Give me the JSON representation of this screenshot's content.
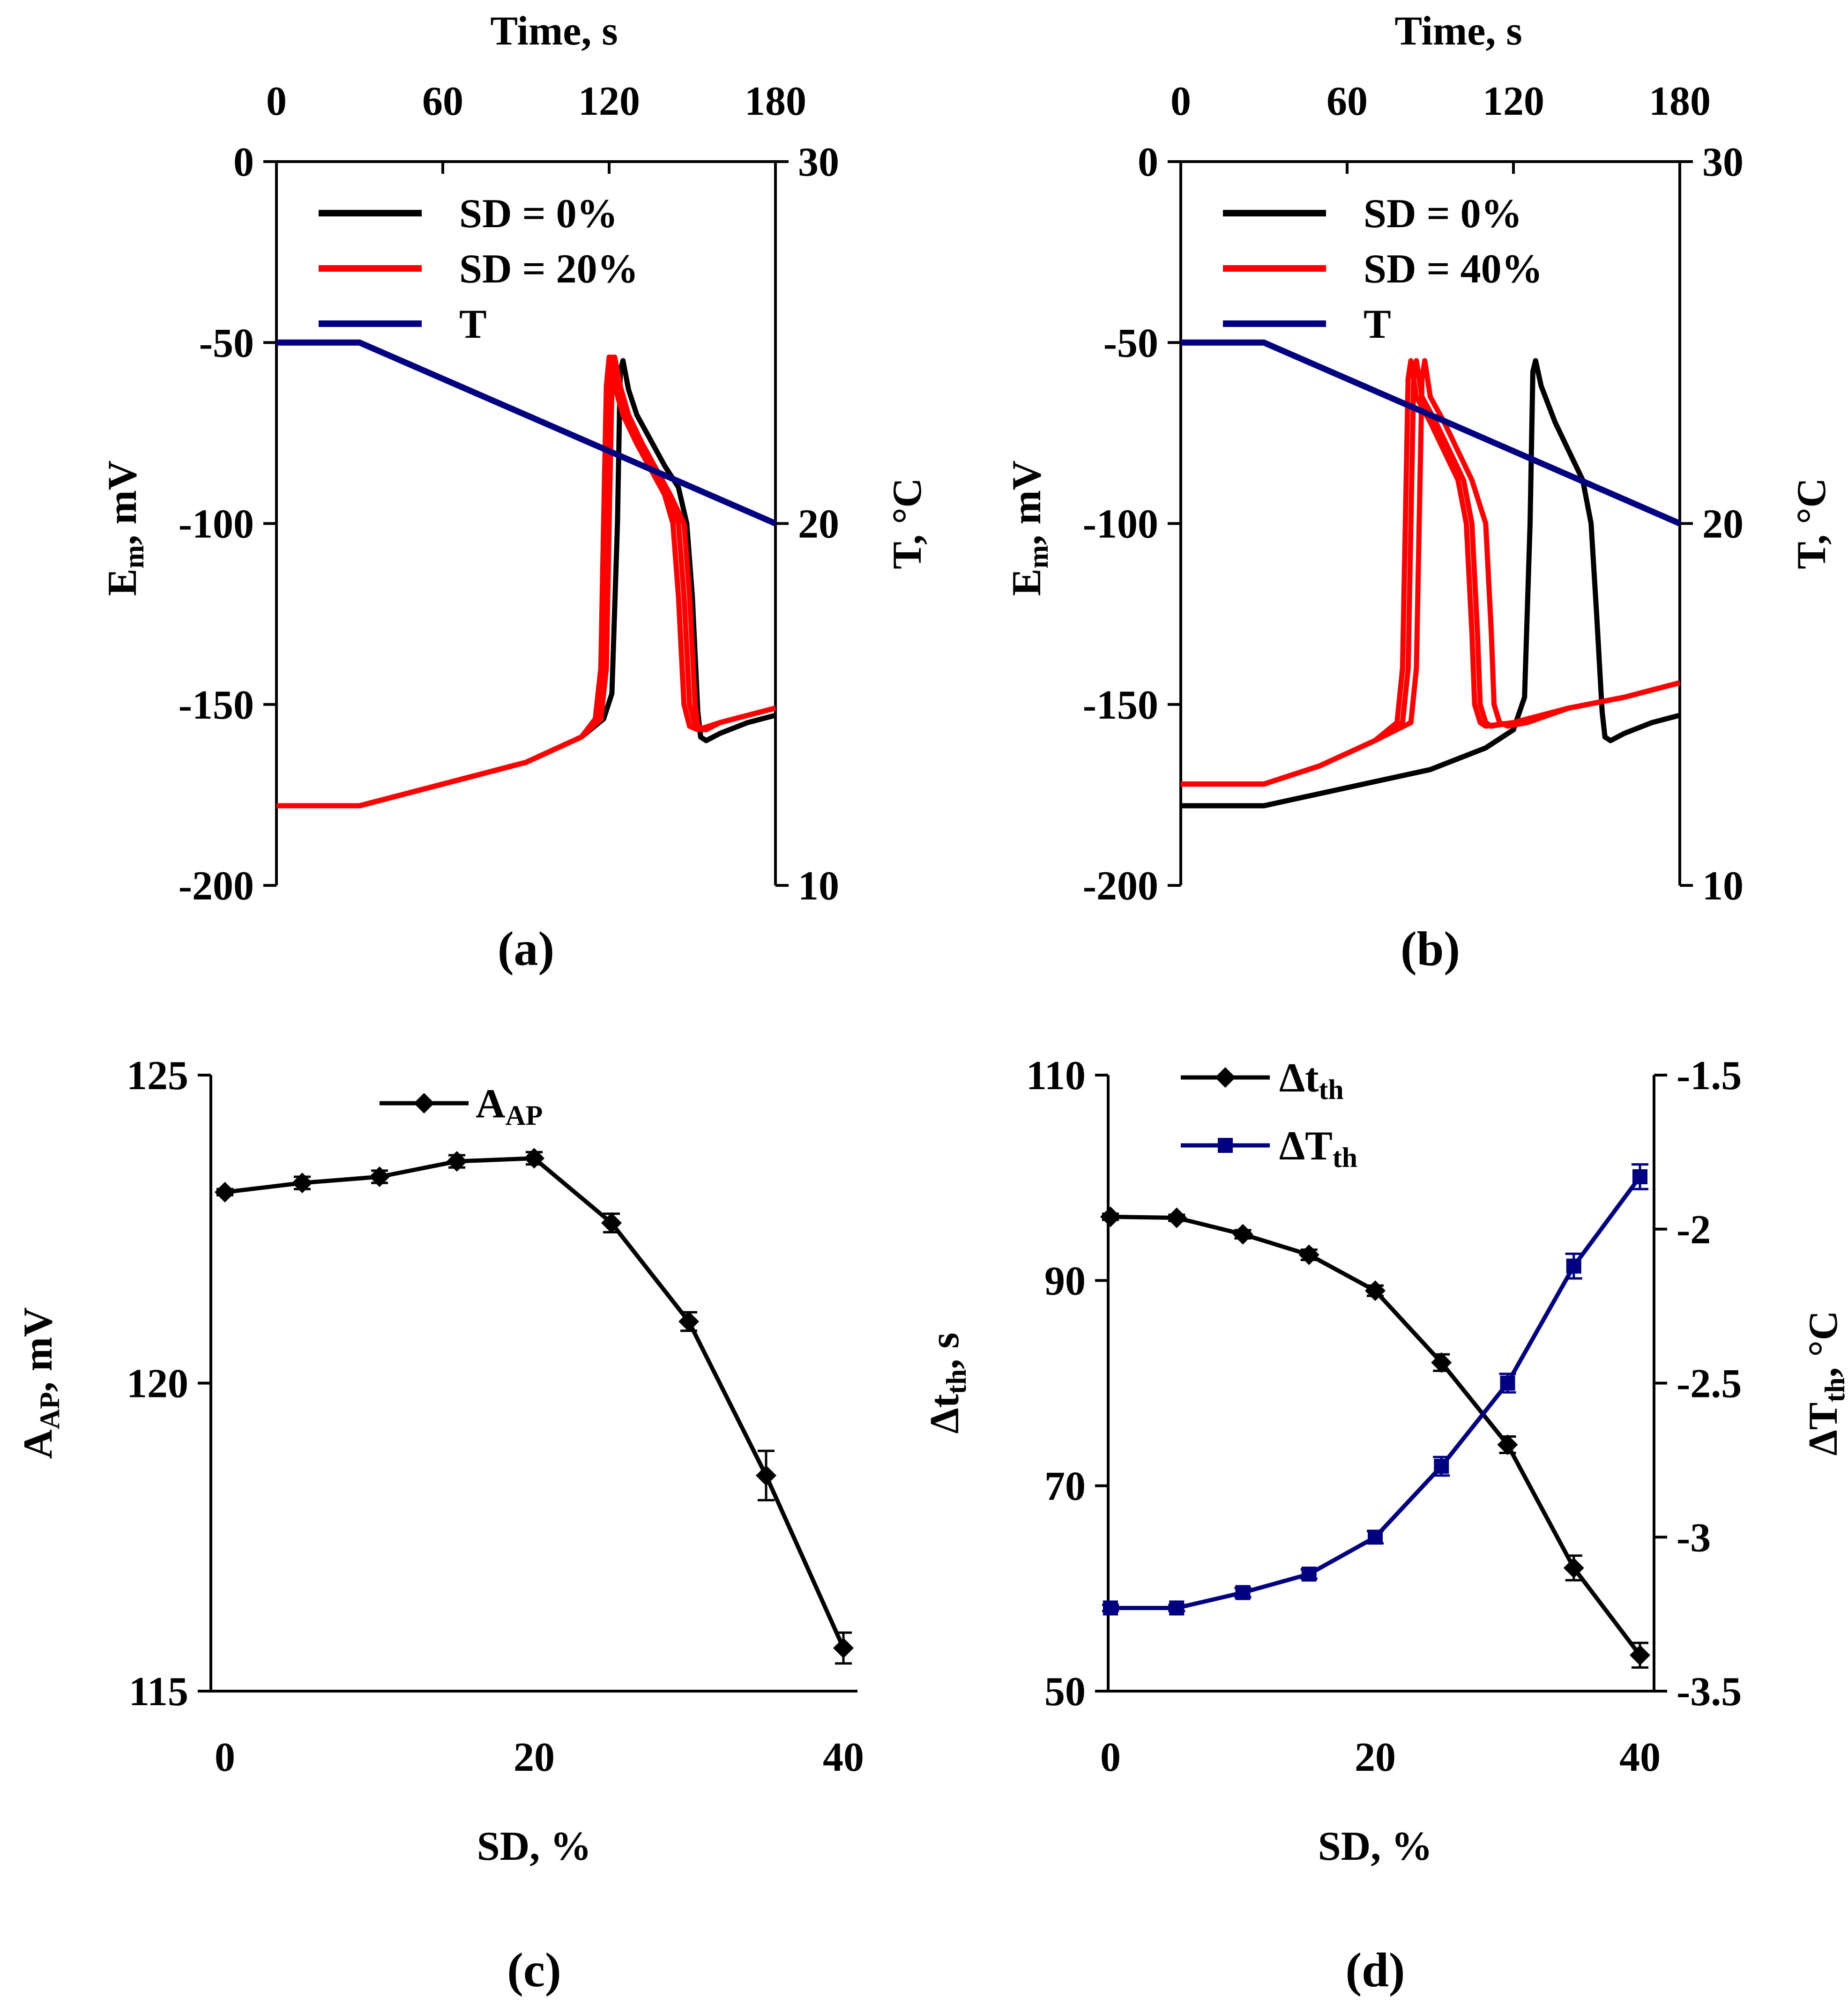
{
  "colors": {
    "black": "#000000",
    "red": "#ff0000",
    "navy": "#000080"
  },
  "chart_data": [
    {
      "panel_label": "(a)",
      "type": "line",
      "top_xlabel": "Time, s",
      "xlim": [
        0,
        180
      ],
      "xticks": [
        "0",
        "60",
        "120",
        "180"
      ],
      "ylabel_main": "E",
      "ylabel_sub": "m",
      "ylabel_tail": ", mV",
      "ylim": [
        -200,
        0
      ],
      "yticks": [
        "0",
        "-50",
        "-100",
        "-150",
        "-200"
      ],
      "y2label": "T, °C",
      "y2lim": [
        10,
        30
      ],
      "y2ticks": [
        "30",
        "20",
        "10"
      ],
      "legend": [
        "SD = 0%",
        "SD = 20%",
        "T"
      ],
      "legend_placement": "top-left",
      "series": [
        {
          "name": "SD = 0%",
          "color": "black",
          "axis": "left",
          "x": [
            0,
            30,
            60,
            90,
            110,
            118,
            121,
            123,
            124,
            125,
            127,
            130,
            135,
            140,
            145,
            148,
            150,
            152,
            153,
            155,
            160,
            170,
            180
          ],
          "y": [
            -178,
            -178,
            -172,
            -166,
            -159,
            -154,
            -147,
            -100,
            -58,
            -55,
            -63,
            -70,
            -77,
            -84,
            -90,
            -100,
            -120,
            -152,
            -159,
            -160,
            -158,
            -155,
            -153
          ]
        },
        {
          "name": "SD = 20%",
          "color": "red",
          "axis": "left",
          "x": [
            0,
            30,
            60,
            90,
            110,
            115,
            117,
            118,
            119,
            120,
            122,
            125,
            130,
            135,
            140,
            143,
            145,
            147,
            149,
            152,
            160,
            170,
            180
          ],
          "y": [
            -178,
            -178,
            -172,
            -166,
            -159,
            -154,
            -140,
            -100,
            -62,
            -54,
            -62,
            -70,
            -78,
            -85,
            -92,
            -100,
            -120,
            -150,
            -156,
            -157,
            -155,
            -153,
            -151
          ]
        },
        {
          "name": "SD = 20%",
          "color": "red",
          "axis": "left",
          "x": [
            0,
            30,
            60,
            90,
            110,
            116,
            118,
            119,
            120,
            121,
            123,
            126,
            131,
            136,
            141,
            145,
            147,
            149,
            151,
            154,
            160,
            170,
            180
          ],
          "y": [
            -178,
            -178,
            -172,
            -166,
            -159,
            -154,
            -140,
            -100,
            -62,
            -54,
            -62,
            -70,
            -78,
            -85,
            -92,
            -100,
            -120,
            -150,
            -156,
            -157,
            -155,
            -153,
            -151
          ]
        },
        {
          "name": "SD = 20%",
          "color": "red",
          "axis": "left",
          "x": [
            0,
            30,
            60,
            90,
            110,
            117,
            119,
            120,
            121,
            122,
            124,
            127,
            132,
            137,
            142,
            147,
            149,
            151,
            152,
            155,
            160,
            170,
            180
          ],
          "y": [
            -178,
            -178,
            -172,
            -166,
            -159,
            -154,
            -140,
            -100,
            -62,
            -54,
            -62,
            -70,
            -78,
            -85,
            -92,
            -100,
            -120,
            -150,
            -156,
            -157,
            -155,
            -153,
            -151
          ]
        },
        {
          "name": "T",
          "color": "navy",
          "axis": "right",
          "x": [
            0,
            30,
            180
          ],
          "y": [
            25,
            25,
            20
          ]
        }
      ]
    },
    {
      "panel_label": "(b)",
      "type": "line",
      "top_xlabel": "Time, s",
      "xlim": [
        0,
        180
      ],
      "xticks": [
        "0",
        "60",
        "120",
        "180"
      ],
      "ylabel_main": "E",
      "ylabel_sub": "m",
      "ylabel_tail": ", mV",
      "ylim": [
        -200,
        0
      ],
      "yticks": [
        "0",
        "-50",
        "-100",
        "-150",
        "-200"
      ],
      "y2label": "T, °C",
      "y2lim": [
        10,
        30
      ],
      "y2ticks": [
        "30",
        "20",
        "10"
      ],
      "legend": [
        "SD = 0%",
        "SD = 40%",
        "T"
      ],
      "legend_placement": "top-left",
      "series": [
        {
          "name": "SD = 0%",
          "color": "black",
          "axis": "left",
          "x": [
            0,
            30,
            60,
            90,
            110,
            120,
            124,
            126,
            127,
            128,
            130,
            135,
            140,
            145,
            148,
            150,
            152,
            153,
            155,
            160,
            170,
            180
          ],
          "y": [
            -178,
            -178,
            -173,
            -168,
            -162,
            -157,
            -148,
            -100,
            -58,
            -55,
            -62,
            -72,
            -80,
            -88,
            -100,
            -125,
            -152,
            -159,
            -160,
            -158,
            -155,
            -153
          ]
        },
        {
          "name": "SD = 40%",
          "color": "red",
          "axis": "left",
          "x": [
            0,
            30,
            50,
            70,
            78,
            80,
            81,
            82,
            83,
            85,
            90,
            95,
            100,
            103,
            105,
            106,
            108,
            110,
            120,
            140,
            160,
            180
          ],
          "y": [
            -172,
            -172,
            -167,
            -160,
            -155,
            -140,
            -100,
            -60,
            -55,
            -65,
            -72,
            -80,
            -88,
            -100,
            -130,
            -150,
            -155,
            -156,
            -155,
            -151,
            -148,
            -144
          ]
        },
        {
          "name": "SD = 40%",
          "color": "red",
          "axis": "left",
          "x": [
            0,
            30,
            50,
            70,
            80,
            82,
            83,
            84,
            85,
            87,
            92,
            97,
            102,
            105,
            107,
            108,
            110,
            112,
            120,
            140,
            160,
            180
          ],
          "y": [
            -172,
            -172,
            -167,
            -160,
            -155,
            -140,
            -100,
            -60,
            -55,
            -65,
            -72,
            -80,
            -88,
            -100,
            -130,
            -150,
            -155,
            -156,
            -155,
            -151,
            -148,
            -144
          ]
        },
        {
          "name": "SD = 40%",
          "color": "red",
          "axis": "left",
          "x": [
            0,
            30,
            50,
            70,
            83,
            85,
            86,
            87,
            88,
            90,
            95,
            100,
            105,
            110,
            112,
            113,
            115,
            118,
            125,
            140,
            160,
            180
          ],
          "y": [
            -172,
            -172,
            -167,
            -160,
            -155,
            -140,
            -100,
            -60,
            -55,
            -65,
            -72,
            -80,
            -88,
            -100,
            -130,
            -150,
            -155,
            -156,
            -155,
            -151,
            -148,
            -144
          ]
        },
        {
          "name": "T",
          "color": "navy",
          "axis": "right",
          "x": [
            0,
            30,
            180
          ],
          "y": [
            25,
            25,
            20
          ]
        }
      ]
    },
    {
      "panel_label": "(c)",
      "type": "line",
      "xlabel": "SD, %",
      "xlim": [
        0,
        40
      ],
      "xticks": [
        "0",
        "20",
        "40"
      ],
      "ylabel_main": "A",
      "ylabel_sub": "AP",
      "ylabel_tail": ", mV",
      "ylim": [
        115,
        125
      ],
      "yticks": [
        "125",
        "120",
        "115"
      ],
      "legend_main": "A",
      "legend_sub": "AP",
      "legend_placement": "top-center",
      "series": [
        {
          "name": "A_AP",
          "color": "black",
          "axis": "left",
          "marker": "diamond",
          "x": [
            0,
            5,
            10,
            15,
            20,
            25,
            30,
            35,
            40
          ],
          "y": [
            123.1,
            123.25,
            123.35,
            123.6,
            123.65,
            122.6,
            121.0,
            118.5,
            115.7
          ],
          "err": [
            0.05,
            0.1,
            0.1,
            0.1,
            0.1,
            0.15,
            0.15,
            0.4,
            0.25
          ]
        }
      ]
    },
    {
      "panel_label": "(d)",
      "type": "line",
      "xlabel": "SD, %",
      "xlim": [
        0,
        40
      ],
      "xticks": [
        "0",
        "20",
        "40"
      ],
      "ylabel_main": "Δt",
      "ylabel_sub": "th",
      "ylabel_tail": ", s",
      "ylim": [
        50,
        110
      ],
      "yticks": [
        "110",
        "90",
        "70",
        "50"
      ],
      "y2label_main": "ΔT",
      "y2label_sub": "th",
      "y2label_tail": ", °C",
      "y2lim": [
        -3.5,
        -1.5
      ],
      "y2ticks": [
        "-1.5",
        "-2",
        "-2.5",
        "-3",
        "-3.5"
      ],
      "legend_placement": "top-left",
      "series": [
        {
          "name": "Δt_th",
          "label_main": "Δt",
          "label_sub": "th",
          "color": "black",
          "axis": "left",
          "marker": "diamond",
          "x": [
            0,
            5,
            10,
            15,
            20,
            25,
            30,
            35,
            40
          ],
          "y": [
            96.2,
            96.1,
            94.5,
            92.5,
            89.0,
            82.0,
            74.0,
            62.0,
            53.5
          ],
          "err": [
            0.3,
            0.3,
            0.4,
            0.5,
            0.5,
            0.8,
            0.8,
            1.2,
            1.2
          ]
        },
        {
          "name": "ΔT_th",
          "label_main": "ΔT",
          "label_sub": "th",
          "color": "navy",
          "axis": "right",
          "marker": "square",
          "x": [
            0,
            5,
            10,
            15,
            20,
            25,
            30,
            35,
            40
          ],
          "y": [
            -3.23,
            -3.23,
            -3.18,
            -3.12,
            -3.0,
            -2.77,
            -2.5,
            -2.12,
            -1.83
          ],
          "err": [
            0.01,
            0.01,
            0.015,
            0.015,
            0.02,
            0.03,
            0.03,
            0.04,
            0.04
          ]
        }
      ]
    }
  ]
}
